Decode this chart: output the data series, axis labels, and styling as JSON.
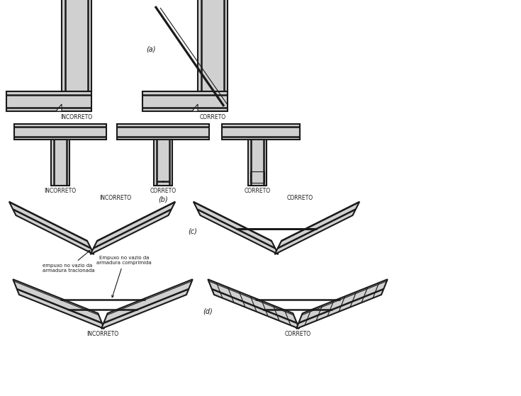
{
  "bg_color": "#ffffff",
  "line_color": "#1a1a1a",
  "fill_concrete": "#d0d0d0",
  "fill_white": "#ffffff",
  "fill_hatch": "#c8c8c8",
  "lw_outer": 1.5,
  "lw_rebar": 1.8,
  "lw_thin": 0.8,
  "fs_label": 5.5,
  "fs_section": 7.0,
  "fs_annot": 5.0,
  "label_incorreto": "INCORRETO",
  "label_correto": "CORRETO",
  "sec_a": "(a)",
  "sec_b": "(b)",
  "sec_c": "(c)",
  "sec_d": "(d)",
  "text_c": "empuxo no vazio da\narmadura tracionada",
  "text_d": "Empuxo no vazio da\narmadura comprimida"
}
